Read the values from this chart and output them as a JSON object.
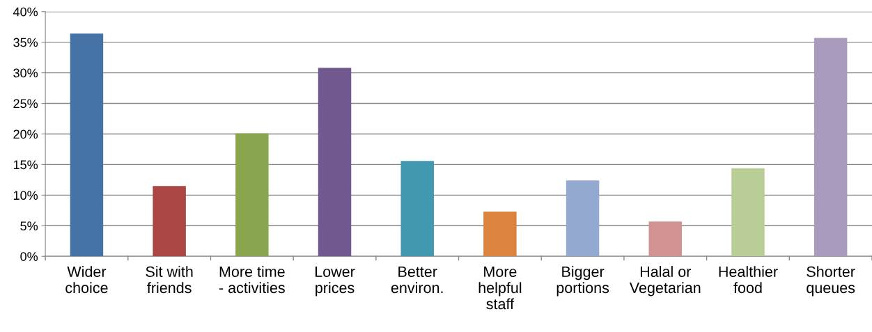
{
  "chart_data": {
    "type": "bar",
    "categories": [
      "Wider\nchoice",
      "Sit with\nfriends",
      "More time\n- activities",
      "Lower\nprices",
      "Better\nenviron.",
      "More\nhelpful\nstaff",
      "Bigger\nportions",
      "Halal or\nVegetarian",
      "Healthier\nfood",
      "Shorter\nqueues"
    ],
    "values": [
      36.4,
      11.5,
      20.1,
      30.8,
      15.6,
      7.3,
      12.4,
      5.7,
      14.4,
      35.7
    ],
    "colors": [
      "#4572a7",
      "#aa4643",
      "#89a54e",
      "#71588f",
      "#4198af",
      "#db843d",
      "#93a9cf",
      "#d19392",
      "#b9cd96",
      "#a99bbd"
    ],
    "ylim": [
      0,
      40
    ],
    "yticks": [
      {
        "value": 0,
        "label": "0%"
      },
      {
        "value": 5,
        "label": "5%"
      },
      {
        "value": 10,
        "label": "10%"
      },
      {
        "value": 15,
        "label": "15%"
      },
      {
        "value": 20,
        "label": "20%"
      },
      {
        "value": 25,
        "label": "25%"
      },
      {
        "value": 30,
        "label": "30%"
      },
      {
        "value": 35,
        "label": "35%"
      },
      {
        "value": 40,
        "label": "40%"
      }
    ],
    "grid": "y",
    "legend": false
  }
}
